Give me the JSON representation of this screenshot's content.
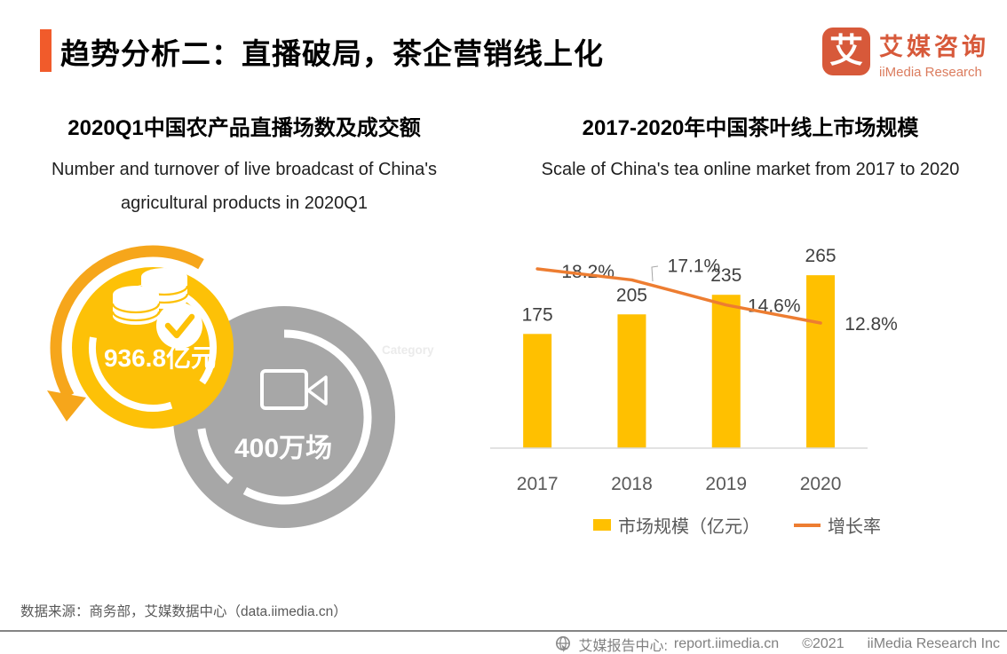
{
  "page": {
    "title": "趋势分析二：直播破局，茶企营销线上化",
    "logo": {
      "glyph": "艾",
      "name_cn": "艾媒咨询",
      "name_en": "iiMedia Research"
    }
  },
  "left_panel": {
    "title_cn": "2020Q1中国农产品直播场数及成交额",
    "title_en_lines": [
      "Number and turnover of live broadcast of China's",
      "agricultural products in 2020Q1"
    ],
    "watermark": "Category"
  },
  "right_panel": {
    "title_cn": "2017-2020年中国茶叶线上市场规模",
    "title_en": "Scale of China's tea online market from 2017 to 2020",
    "legend": [
      {
        "label": "市场规模（亿元）",
        "swatch": "square",
        "color": "#FFC000"
      },
      {
        "label": "增长率",
        "swatch": "line",
        "color": "#ED7D31"
      }
    ]
  },
  "chart_data": [
    {
      "type": "bar",
      "title": "2017-2020年中国茶叶线上市场规模",
      "subtitle": "Scale of China's tea online market from 2017 to 2020",
      "categories": [
        "2017",
        "2018",
        "2019",
        "2020"
      ],
      "series": [
        {
          "name": "市场规模（亿元）",
          "type": "bar",
          "values": [
            175,
            205,
            235,
            265
          ],
          "color": "#FFC000"
        },
        {
          "name": "增长率",
          "type": "line",
          "values_pct": [
            18.2,
            17.1,
            14.6,
            12.8
          ],
          "labels": [
            "18.2%",
            "17.1%",
            "14.6%",
            "12.8%"
          ],
          "color": "#ED7D31"
        }
      ],
      "bar_ylim": [
        0,
        340
      ],
      "grid": false,
      "legend_position": "bottom"
    },
    {
      "type": "kpi",
      "title": "2020Q1中国农产品直播场数及成交额",
      "subtitle": "Number and turnover of live broadcast of China's agricultural products in 2020Q1",
      "items": [
        {
          "value": "936.8亿元",
          "color": "#FDC107",
          "icon": "coins-check-icon"
        },
        {
          "value": "400万场",
          "color": "#A7A7A7",
          "icon": "video-camera-icon"
        }
      ]
    }
  ],
  "footer": {
    "source": "数据来源：商务部，艾媒数据中心（data.iimedia.cn）",
    "report_center": "艾媒报告中心:",
    "report_url": "report.iimedia.cn",
    "copyright": "©2021",
    "company": "iiMedia Research Inc"
  }
}
